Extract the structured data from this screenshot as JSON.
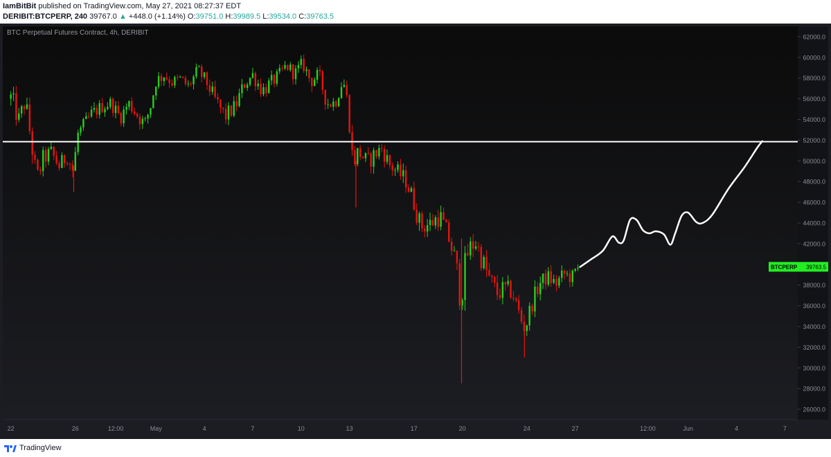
{
  "header": {
    "publisher": "IamBitBit",
    "published_text": "published on TradingView.com, May 27, 2021 08:27:37 EDT",
    "symbol": "DERIBIT:BTCPERP, 240",
    "last": "39767.0",
    "change": "+448.0 (+1.14%)",
    "o_label": "O:",
    "o": "39751.0",
    "h_label": "H:",
    "h": "39989.5",
    "l_label": "L:",
    "l": "39534.0",
    "c_label": "C:",
    "c": "39763.5"
  },
  "footer": {
    "brand": "TradingView"
  },
  "colors": {
    "up": "#26d11f",
    "down": "#e8140f",
    "bg_top": "#0b0b0b",
    "bg_bottom": "#1c1d22",
    "level": "#ffffff",
    "price_tag": "#22ee22"
  },
  "chart_data": {
    "type": "candlestick",
    "title": "BTC Perpetual Futures Contract, 4h, DERIBIT",
    "ylim": [
      25000,
      63000
    ],
    "y_ticks": [
      26000,
      28000,
      30000,
      32000,
      34000,
      36000,
      38000,
      40000,
      42000,
      44000,
      46000,
      48000,
      50000,
      52000,
      54000,
      56000,
      58000,
      60000,
      62000
    ],
    "y_tick_labels": [
      "26000.0",
      "28000.0",
      "30000.0",
      "32000.0",
      "34000.0",
      "36000.0",
      "38000.0",
      "40000.0",
      "42000.0",
      "44000.0",
      "46000.0",
      "48000.0",
      "50000.0",
      "52000.0",
      "54000.0",
      "56000.0",
      "58000.0",
      "60000.0",
      "62000.0"
    ],
    "x_ticks": [
      {
        "label": "22",
        "day": 0
      },
      {
        "label": "26",
        "day": 4
      },
      {
        "label": "12:00",
        "day": 6.5
      },
      {
        "label": "May",
        "day": 9
      },
      {
        "label": "4",
        "day": 12
      },
      {
        "label": "7",
        "day": 15
      },
      {
        "label": "10",
        "day": 18
      },
      {
        "label": "13",
        "day": 21
      },
      {
        "label": "17",
        "day": 25
      },
      {
        "label": "20",
        "day": 28
      },
      {
        "label": "24",
        "day": 32
      },
      {
        "label": "27",
        "day": 35
      },
      {
        "label": "12:00",
        "day": 39.5
      },
      {
        "label": "Jun",
        "day": 42
      },
      {
        "label": "4",
        "day": 45
      },
      {
        "label": "7",
        "day": 48
      }
    ],
    "x_range_days": [
      -0.5,
      48.8
    ],
    "horizontal_level": 51850,
    "price_tag": {
      "label": "BTCPERP",
      "value": 39763.5,
      "value_label": "39763.5"
    },
    "anchors": [
      [
        0.0,
        56000,
        3000
      ],
      [
        0.5,
        54000,
        2000
      ],
      [
        0.9,
        55800,
        2000
      ],
      [
        1.3,
        51500,
        2800
      ],
      [
        1.6,
        48200,
        2200
      ],
      [
        2.0,
        50200,
        2000
      ],
      [
        2.5,
        50800,
        1800
      ],
      [
        3.0,
        49500,
        1800
      ],
      [
        3.5,
        50500,
        1800
      ],
      [
        3.9,
        48800,
        2200
      ],
      [
        4.1,
        52500,
        1800
      ],
      [
        4.6,
        53500,
        1800
      ],
      [
        5.0,
        54500,
        1600
      ],
      [
        5.6,
        55200,
        1500
      ],
      [
        6.2,
        55600,
        1500
      ],
      [
        6.8,
        54200,
        1500
      ],
      [
        7.3,
        55600,
        1500
      ],
      [
        7.9,
        54300,
        1600
      ],
      [
        8.3,
        53500,
        1600
      ],
      [
        8.7,
        55500,
        1600
      ],
      [
        9.0,
        57700,
        1600
      ],
      [
        9.5,
        58300,
        1500
      ],
      [
        10.0,
        57600,
        1400
      ],
      [
        10.5,
        57900,
        1400
      ],
      [
        11.0,
        57200,
        1500
      ],
      [
        11.6,
        58700,
        1600
      ],
      [
        12.1,
        57700,
        1500
      ],
      [
        12.7,
        55800,
        1800
      ],
      [
        13.3,
        54300,
        1800
      ],
      [
        13.9,
        55200,
        1800
      ],
      [
        14.5,
        57500,
        1800
      ],
      [
        15.0,
        58300,
        1600
      ],
      [
        15.6,
        56800,
        1800
      ],
      [
        16.1,
        57500,
        1600
      ],
      [
        16.6,
        58200,
        1500
      ],
      [
        17.1,
        59200,
        1500
      ],
      [
        17.6,
        58400,
        1500
      ],
      [
        18.1,
        59400,
        1500
      ],
      [
        18.6,
        57700,
        1600
      ],
      [
        19.1,
        58300,
        1600
      ],
      [
        19.6,
        55600,
        1800
      ],
      [
        20.1,
        55600,
        1700
      ],
      [
        20.6,
        57900,
        1600
      ],
      [
        20.9,
        55500,
        1800
      ],
      [
        21.2,
        50000,
        2500
      ],
      [
        21.6,
        50900,
        2200
      ],
      [
        22.1,
        49800,
        2000
      ],
      [
        22.6,
        50700,
        2000
      ],
      [
        23.0,
        51200,
        1800
      ],
      [
        23.5,
        49600,
        1800
      ],
      [
        24.0,
        48900,
        1800
      ],
      [
        24.5,
        48100,
        2000
      ],
      [
        25.0,
        46000,
        2200
      ],
      [
        25.4,
        43700,
        2400
      ],
      [
        26.0,
        43900,
        2200
      ],
      [
        26.6,
        44700,
        2200
      ],
      [
        27.1,
        42800,
        2200
      ],
      [
        27.5,
        40700,
        2400
      ],
      [
        27.9,
        37000,
        4000
      ],
      [
        28.3,
        41000,
        3000
      ],
      [
        28.8,
        42300,
        2400
      ],
      [
        29.2,
        40500,
        2400
      ],
      [
        29.7,
        38500,
        2400
      ],
      [
        30.2,
        37100,
        2200
      ],
      [
        30.6,
        37700,
        2000
      ],
      [
        31.1,
        37300,
        2000
      ],
      [
        31.6,
        34800,
        2400
      ],
      [
        31.9,
        33800,
        2000
      ],
      [
        32.3,
        36200,
        2000
      ],
      [
        32.8,
        38200,
        1800
      ],
      [
        33.3,
        38800,
        1700
      ],
      [
        33.8,
        38100,
        1600
      ],
      [
        34.3,
        39100,
        1600
      ],
      [
        34.8,
        38700,
        1600
      ],
      [
        35.2,
        39764,
        1500
      ]
    ],
    "spikes": [
      {
        "day": 27.95,
        "low": 28500,
        "high": 42500
      },
      {
        "day": 31.85,
        "low": 31000,
        "high": 34500
      },
      {
        "day": 21.4,
        "low": 45500,
        "high": 50000
      },
      {
        "day": 3.9,
        "low": 47000,
        "high": 49500
      }
    ],
    "projection": [
      [
        35.3,
        39750
      ],
      [
        35.9,
        40400
      ],
      [
        36.7,
        41300
      ],
      [
        37.3,
        42700
      ],
      [
        37.7,
        42100
      ],
      [
        38.0,
        42300
      ],
      [
        38.4,
        44300
      ],
      [
        38.8,
        44300
      ],
      [
        39.2,
        43300
      ],
      [
        39.6,
        43000
      ],
      [
        40.0,
        43200
      ],
      [
        40.5,
        42900
      ],
      [
        40.9,
        41900
      ],
      [
        41.2,
        43000
      ],
      [
        41.6,
        44700
      ],
      [
        42.0,
        45000
      ],
      [
        42.5,
        44100
      ],
      [
        42.9,
        44000
      ],
      [
        43.5,
        44800
      ],
      [
        44.5,
        47300
      ],
      [
        45.5,
        49400
      ],
      [
        46.3,
        51300
      ],
      [
        46.6,
        51900
      ]
    ]
  }
}
